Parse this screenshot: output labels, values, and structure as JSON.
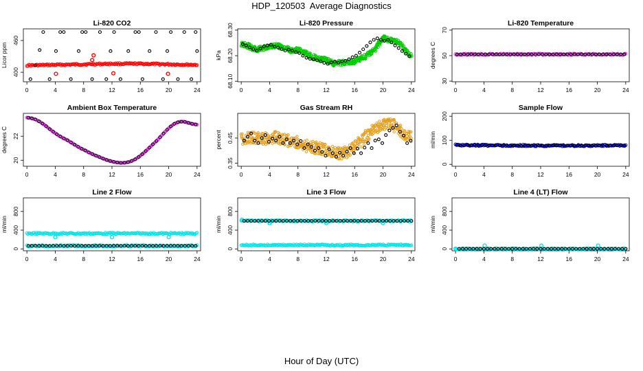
{
  "title": "HDP_120503  Average Diagnostics",
  "xlabel": "Hour of Day (UTC)",
  "chart_data": [
    {
      "type": "scatter",
      "title": "Li-820 CO2",
      "ylabel": "Licor ppm",
      "xticks": [
        "0",
        "4",
        "8",
        "12",
        "16",
        "20",
        "24"
      ],
      "yticks": [
        "400",
        "460"
      ],
      "xlim": [
        -0.5,
        24.5
      ],
      "ylim": [
        382,
        482
      ],
      "series": [
        {
          "name": "raw",
          "color": "#ff0000",
          "style": "band",
          "x0": 0,
          "x1": 24,
          "values": [
            413,
            414,
            415,
            416,
            416,
            415,
            414
          ]
        },
        {
          "name": "raw-outliers",
          "color": "#ff0000",
          "style": "points",
          "x": [
            4.1,
            9.2,
            9.4,
            12.2,
            19.9
          ],
          "values": [
            397,
            423,
            432,
            398,
            397
          ]
        },
        {
          "name": "average",
          "color": "#000000",
          "style": "points",
          "x": [
            0.5,
            1.2,
            1.8,
            2.3,
            3.2,
            4.1,
            4.7,
            5.2,
            6.2,
            7.3,
            7.8,
            8.3,
            9.2,
            10.3,
            11.2,
            11.8,
            12.3,
            13.2,
            14.3,
            15.3,
            15.8,
            16.3,
            17.3,
            18.2,
            19.2,
            19.8,
            20.3,
            21.3,
            22.2,
            23.2,
            23.8,
            24.0
          ],
          "values": [
            387,
            413,
            442,
            476,
            387,
            440,
            476,
            476,
            387,
            440,
            476,
            476,
            387,
            476,
            387,
            440,
            476,
            387,
            440,
            476,
            476,
            387,
            440,
            476,
            387,
            440,
            476,
            387,
            476,
            387,
            476,
            440
          ]
        }
      ]
    },
    {
      "type": "scatter",
      "title": "Li-820 Pressure",
      "ylabel": "kPa",
      "xticks": [
        "0",
        "4",
        "8",
        "12",
        "16",
        "20",
        "24"
      ],
      "yticks": [
        "68.10",
        "68.20",
        "68.30"
      ],
      "xlim": [
        -0.5,
        24.5
      ],
      "ylim": [
        68.098,
        68.305
      ],
      "series": [
        {
          "name": "raw",
          "color": "#00cc00",
          "style": "cloud",
          "x0": 0,
          "x1": 24,
          "spread": 0.01,
          "values": [
            68.245,
            68.238,
            68.225,
            68.228,
            68.238,
            68.24,
            68.232,
            68.22,
            68.222,
            68.212,
            68.196,
            68.188,
            68.183,
            68.17,
            68.172,
            68.176,
            68.178,
            68.19,
            68.205,
            68.228,
            68.27,
            68.262,
            68.255,
            68.225,
            68.2
          ]
        },
        {
          "name": "average",
          "color": "#000000",
          "style": "points",
          "x": [
            0.2,
            0.7,
            1.2,
            1.7,
            2.2,
            2.7,
            3.2,
            3.7,
            4.2,
            4.7,
            5.2,
            5.7,
            6.2,
            6.7,
            7.2,
            7.7,
            8.2,
            8.7,
            9.2,
            9.7,
            10.2,
            10.7,
            11.2,
            11.7,
            12.2,
            12.7,
            13.2,
            13.7,
            14.2,
            14.7,
            15.2,
            15.7,
            16.2,
            16.7,
            17.2,
            17.7,
            18.2,
            18.7,
            19.2,
            19.7,
            20.2,
            20.7,
            21.2,
            21.7,
            22.2,
            22.7,
            23.2,
            23.7
          ],
          "values": [
            68.245,
            68.24,
            68.232,
            68.226,
            68.22,
            68.228,
            68.236,
            68.24,
            68.243,
            68.236,
            68.232,
            68.226,
            68.22,
            68.224,
            68.22,
            68.214,
            68.21,
            68.2,
            68.192,
            68.188,
            68.186,
            68.182,
            68.178,
            68.172,
            68.168,
            68.174,
            68.176,
            68.172,
            68.178,
            68.18,
            68.186,
            68.194,
            68.2,
            68.212,
            68.225,
            68.238,
            68.252,
            68.262,
            68.268,
            68.262,
            68.258,
            68.262,
            68.252,
            68.24,
            68.23,
            68.218,
            68.208,
            68.198
          ]
        }
      ]
    },
    {
      "type": "scatter",
      "title": "Li-820 Temperature",
      "ylabel": "degrees C",
      "xticks": [
        "0",
        "4",
        "8",
        "12",
        "16",
        "20",
        "24"
      ],
      "yticks": [
        "30",
        "50",
        "70"
      ],
      "xlim": [
        -0.5,
        24.5
      ],
      "ylim": [
        29.5,
        71
      ],
      "series": [
        {
          "name": "raw",
          "color": "#dd33dd",
          "style": "band",
          "x0": 0,
          "x1": 24,
          "values": [
            51.0,
            51.0,
            51.0
          ]
        },
        {
          "name": "average",
          "color": "#000000",
          "style": "points",
          "x0": 0.2,
          "x1": 23.8,
          "count": 48,
          "values": [
            51.0
          ]
        }
      ]
    },
    {
      "type": "scatter",
      "title": "Ambient Box Temperature",
      "ylabel": "degrees C",
      "xticks": [
        "0",
        "4",
        "8",
        "12",
        "16",
        "20",
        "24"
      ],
      "yticks": [
        "20",
        "22"
      ],
      "xlim": [
        -0.5,
        24.5
      ],
      "ylim": [
        19.5,
        23.9
      ],
      "series": [
        {
          "name": "raw",
          "color": "#dd33dd",
          "style": "curve",
          "x0": 0,
          "x1": 24,
          "values": [
            23.55,
            23.5,
            23.38,
            23.18,
            22.92,
            22.62,
            22.34,
            22.08,
            21.86,
            21.68,
            21.45,
            21.22,
            21.0,
            20.82,
            20.62,
            20.45,
            20.3,
            20.14,
            20.0,
            19.9,
            19.82,
            19.78,
            19.8,
            19.88,
            20.04,
            20.28,
            20.58,
            20.92,
            21.28,
            21.62,
            22.02,
            22.42,
            22.78,
            23.05,
            23.2,
            23.22,
            23.12,
            23.02,
            22.96
          ]
        },
        {
          "name": "average",
          "color": "#000000",
          "style": "curve-points",
          "x0": 0.2,
          "x1": 23.8,
          "count": 48
        }
      ]
    },
    {
      "type": "scatter",
      "title": "Gas Stream RH",
      "ylabel": "percent",
      "xticks": [
        "0",
        "4",
        "8",
        "12",
        "16",
        "20",
        "24"
      ],
      "yticks": [
        "0.35",
        "0.45"
      ],
      "xlim": [
        -0.5,
        24.5
      ],
      "ylim": [
        0.338,
        0.548
      ],
      "series": [
        {
          "name": "raw",
          "color": "#e6a020",
          "style": "cloud",
          "x0": 0,
          "x1": 24,
          "spread": 0.024,
          "values": [
            0.445,
            0.448,
            0.452,
            0.452,
            0.448,
            0.45,
            0.452,
            0.445,
            0.44,
            0.435,
            0.43,
            0.42,
            0.415,
            0.41,
            0.405,
            0.398,
            0.392,
            0.39,
            0.395,
            0.41,
            0.43,
            0.45,
            0.475,
            0.49,
            0.5,
            0.505,
            0.5,
            0.48,
            0.46,
            0.45
          ]
        },
        {
          "name": "average",
          "color": "#000000",
          "style": "points",
          "x": [
            0.4,
            0.9,
            1.4,
            1.9,
            2.4,
            2.9,
            3.4,
            3.9,
            4.4,
            4.9,
            5.4,
            5.9,
            6.4,
            6.9,
            7.4,
            7.9,
            8.4,
            8.9,
            9.4,
            9.9,
            10.4,
            10.9,
            11.4,
            11.9,
            12.4,
            12.9,
            13.4,
            13.9,
            14.4,
            14.9,
            15.4,
            15.9,
            16.4,
            16.9,
            17.4,
            17.9,
            18.4,
            18.9,
            19.4,
            19.9,
            20.4,
            20.9,
            21.4,
            21.9,
            22.4,
            22.9,
            23.4,
            23.9
          ],
          "values": [
            0.44,
            0.455,
            0.468,
            0.44,
            0.43,
            0.45,
            0.462,
            0.435,
            0.448,
            0.44,
            0.455,
            0.43,
            0.445,
            0.43,
            0.44,
            0.425,
            0.438,
            0.41,
            0.425,
            0.415,
            0.4,
            0.41,
            0.395,
            0.38,
            0.405,
            0.39,
            0.376,
            0.392,
            0.38,
            0.396,
            0.41,
            0.39,
            0.408,
            0.39,
            0.412,
            0.43,
            0.41,
            0.44,
            0.445,
            0.43,
            0.462,
            0.48,
            0.49,
            0.5,
            0.475,
            0.46,
            0.43,
            0.44
          ]
        }
      ]
    },
    {
      "type": "scatter",
      "title": "Sample Flow",
      "ylabel": "ml/min",
      "xticks": [
        "0",
        "4",
        "8",
        "12",
        "16",
        "20",
        "24"
      ],
      "yticks": [
        "0",
        "100",
        "200"
      ],
      "xlim": [
        -0.5,
        24.5
      ],
      "ylim": [
        -8,
        212
      ],
      "series": [
        {
          "name": "raw",
          "color": "#0000cc",
          "style": "band",
          "x0": 0,
          "x1": 24,
          "values": [
            80,
            79,
            78,
            78,
            79
          ]
        },
        {
          "name": "average",
          "color": "#000000",
          "style": "points",
          "x0": 0.2,
          "x1": 23.8,
          "count": 48,
          "values": [
            80,
            79,
            78,
            78,
            79
          ]
        }
      ]
    },
    {
      "type": "scatter",
      "title": "Line 2 Flow",
      "ylabel": "ml/min",
      "xticks": [
        "0",
        "4",
        "8",
        "12",
        "16",
        "20",
        "24"
      ],
      "yticks": [
        "0",
        "400",
        "800"
      ],
      "xlim": [
        -0.5,
        24.5
      ],
      "ylim": [
        -40,
        1090
      ],
      "series": [
        {
          "name": "raw-upper",
          "color": "#00e5e5",
          "style": "band",
          "x0": 0,
          "x1": 24,
          "values": [
            330,
            330,
            330
          ]
        },
        {
          "name": "raw-lower",
          "color": "#00e5e5",
          "style": "band",
          "x0": 0,
          "x1": 24,
          "values": [
            65,
            65,
            65
          ]
        },
        {
          "name": "raw-dips",
          "color": "#00e5e5",
          "style": "points",
          "x": [
            4.0,
            12.0,
            20.0
          ],
          "values": [
            250,
            250,
            250
          ]
        },
        {
          "name": "average",
          "color": "#000000",
          "style": "points",
          "x0": 0.2,
          "x1": 23.8,
          "count": 48,
          "values": [
            65
          ]
        }
      ]
    },
    {
      "type": "scatter",
      "title": "Line 3 Flow",
      "ylabel": "ml/min",
      "xticks": [
        "0",
        "4",
        "8",
        "12",
        "16",
        "20",
        "24"
      ],
      "yticks": [
        "0",
        "400",
        "800"
      ],
      "xlim": [
        -0.5,
        24.5
      ],
      "ylim": [
        -40,
        1090
      ],
      "series": [
        {
          "name": "raw-upper",
          "color": "#00e5e5",
          "style": "band",
          "x0": 0,
          "x1": 24,
          "values": [
            600,
            600,
            600
          ]
        },
        {
          "name": "raw-lower",
          "color": "#00e5e5",
          "style": "band",
          "x0": 0,
          "x1": 24,
          "values": [
            80,
            80,
            80
          ]
        },
        {
          "name": "raw-spikes",
          "color": "#00e5e5",
          "style": "points",
          "x": [
            0.1,
            4.0,
            12.0,
            20.0
          ],
          "values": [
            625,
            550,
            550,
            550
          ]
        },
        {
          "name": "average",
          "color": "#000000",
          "style": "points",
          "x0": 0.4,
          "x1": 24.0,
          "count": 48,
          "values": [
            600
          ]
        }
      ]
    },
    {
      "type": "scatter",
      "title": "Line 4 (LT) Flow",
      "ylabel": "ml/min",
      "xticks": [
        "0",
        "4",
        "8",
        "12",
        "16",
        "20",
        "24"
      ],
      "yticks": [
        "0",
        "400",
        "800"
      ],
      "xlim": [
        -0.5,
        24.5
      ],
      "ylim": [
        -40,
        1090
      ],
      "series": [
        {
          "name": "raw",
          "color": "#00e5e5",
          "style": "points",
          "x": [
            0.0,
            4.1,
            12.1,
            20.1
          ],
          "values": [
            5,
            70,
            70,
            70
          ]
        },
        {
          "name": "raw-band",
          "color": "#00e5e5",
          "style": "band",
          "x0": 0,
          "x1": 24,
          "values": [
            2,
            2
          ]
        },
        {
          "name": "average",
          "color": "#000000",
          "style": "points",
          "x0": 0.5,
          "x1": 24.0,
          "count": 48,
          "values": [
            2
          ]
        }
      ]
    }
  ]
}
